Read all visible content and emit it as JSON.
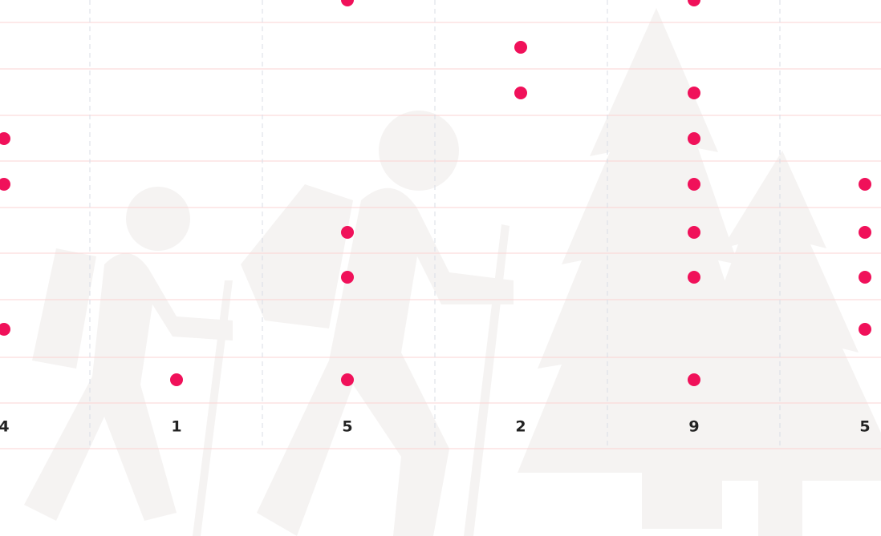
{
  "chart_data": {
    "type": "dot",
    "values": [
      4,
      1,
      5,
      2,
      9,
      5
    ],
    "color": "#f0115a"
  }
}
